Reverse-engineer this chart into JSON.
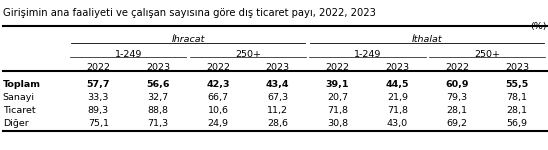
{
  "title": "Girişimin ana faaliyeti ve çalışan sayısına göre dış ticaret payı, 2022, 2023",
  "percent_label": "(%)",
  "ihracat_label": "İhracat",
  "ithalat_label": "İthalat",
  "subgroup_labels": [
    "1-249",
    "250+",
    "1-249",
    "250+"
  ],
  "year_labels": [
    "2022",
    "2023",
    "2022",
    "2023",
    "2022",
    "2023",
    "2022",
    "2023"
  ],
  "row_labels": [
    "Toplam",
    "Sanayi",
    "Ticaret",
    "Diğer"
  ],
  "row_bold": [
    true,
    false,
    false,
    false
  ],
  "row_values": [
    [
      "57,7",
      "56,6",
      "42,3",
      "43,4",
      "39,1",
      "44,5",
      "60,9",
      "55,5"
    ],
    [
      "33,3",
      "32,7",
      "66,7",
      "67,3",
      "20,7",
      "21,9",
      "79,3",
      "78,1"
    ],
    [
      "89,3",
      "88,8",
      "10,6",
      "11,2",
      "71,8",
      "71,8",
      "28,1",
      "28,1"
    ],
    [
      "75,1",
      "71,3",
      "24,9",
      "28,6",
      "30,8",
      "43,0",
      "69,2",
      "56,9"
    ]
  ],
  "background_color": "#ffffff",
  "fs_title": 7.2,
  "fs_header": 6.8,
  "fs_data": 6.8
}
